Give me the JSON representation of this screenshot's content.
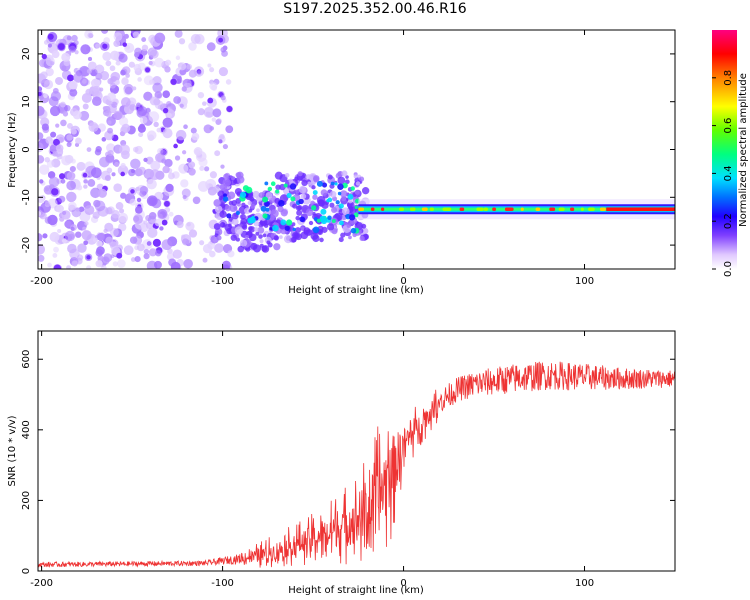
{
  "title": "S197.2025.352.00.46.R16",
  "chart_data": [
    {
      "type": "heatmap",
      "xlabel": "Height of straight line (km)",
      "ylabel": "Frequency (Hz)",
      "xlim": [
        -202,
        150
      ],
      "ylim": [
        -25,
        25
      ],
      "xticks": [
        -200,
        -100,
        0,
        100
      ],
      "yticks": [
        -20,
        -10,
        0,
        10,
        20
      ],
      "colorbar": {
        "label": "Normalized spectral amplitude",
        "range": [
          0,
          1
        ],
        "ticks": [
          "0.0",
          "0.2",
          "0.4",
          "0.6",
          "0.8"
        ],
        "tick_values": [
          0.0,
          0.2,
          0.4,
          0.6,
          0.8
        ],
        "colors": [
          "#ffffff",
          "#e8d8ff",
          "#a060ff",
          "#3000ff",
          "#0080ff",
          "#00e0ff",
          "#00ff60",
          "#a0ff00",
          "#ffff00",
          "#ff8000",
          "#ff0000",
          "#ff0080"
        ]
      },
      "features": {
        "noise_region_x": [
          -202,
          -95
        ],
        "noise_region_y": [
          -25,
          25
        ],
        "transition_x": [
          -95,
          -25
        ],
        "signal_x": [
          -25,
          150
        ],
        "signal_frequency": -12.5
      }
    },
    {
      "type": "line",
      "xlabel": "Height of straight line (km)",
      "ylabel": "SNR (10 * v/v)",
      "xlim": [
        -202,
        150
      ],
      "ylim": [
        0,
        680
      ],
      "xticks": [
        -200,
        -100,
        0,
        100
      ],
      "yticks": [
        0,
        200,
        400,
        600
      ],
      "color": "#ee3333",
      "envelope": {
        "x": [
          -202,
          -110,
          -90,
          -75,
          -60,
          -45,
          -30,
          -20,
          -15,
          -10,
          -5,
          0,
          10,
          20,
          30,
          40,
          60,
          80,
          100,
          120,
          150
        ],
        "y_base": [
          18,
          22,
          35,
          50,
          75,
          100,
          135,
          170,
          200,
          250,
          300,
          360,
          420,
          480,
          515,
          530,
          545,
          555,
          550,
          545,
          545
        ],
        "y_amp": [
          10,
          10,
          20,
          45,
          60,
          80,
          120,
          160,
          200,
          220,
          180,
          90,
          60,
          50,
          50,
          55,
          60,
          60,
          55,
          45,
          35
        ]
      }
    }
  ]
}
